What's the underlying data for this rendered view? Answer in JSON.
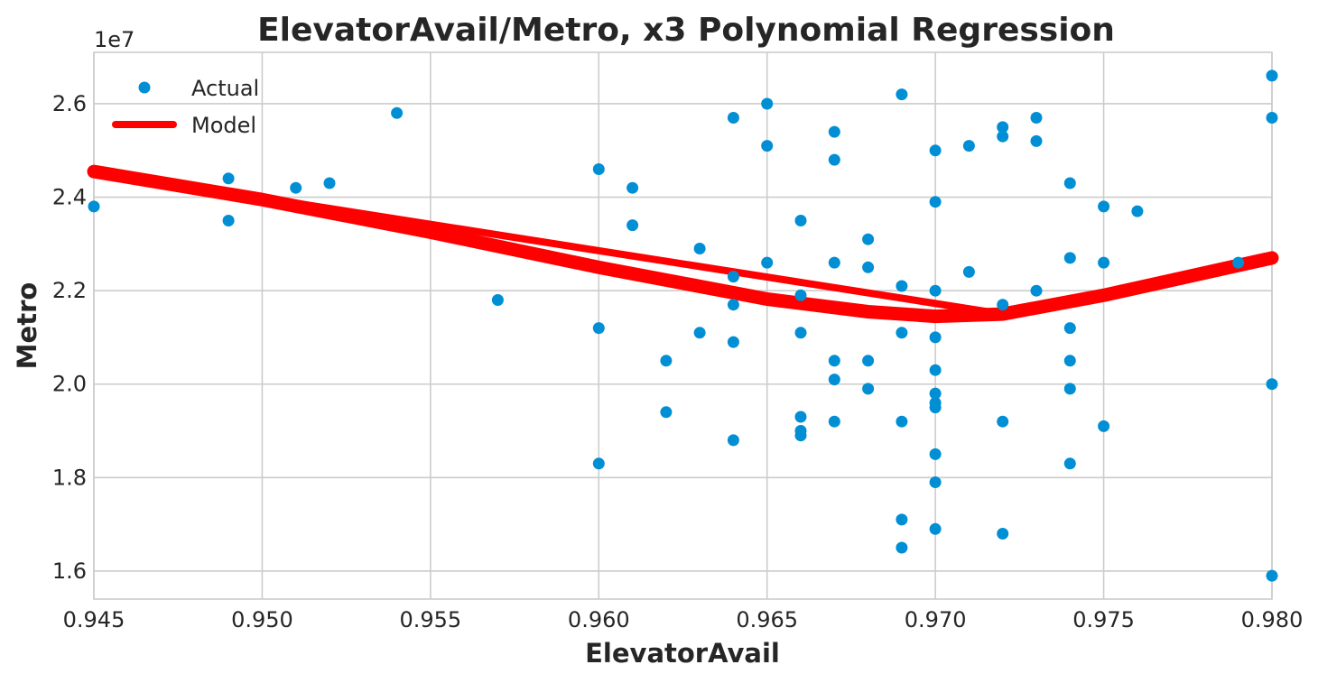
{
  "chart_data": {
    "type": "scatter",
    "title": "ElevatorAvail/Metro, x3 Polynomial Regression",
    "xlabel": "ElevatorAvail",
    "ylabel": "Metro",
    "y_offset_label": "1e7",
    "xlim": [
      0.945,
      0.98
    ],
    "ylim": [
      1.54,
      2.71
    ],
    "x_ticks": [
      0.945,
      0.95,
      0.955,
      0.96,
      0.965,
      0.97,
      0.975,
      0.98
    ],
    "x_tick_labels": [
      "0.945",
      "0.950",
      "0.955",
      "0.960",
      "0.965",
      "0.970",
      "0.975",
      "0.980"
    ],
    "y_ticks": [
      1.6,
      1.8,
      2.0,
      2.2,
      2.4,
      2.6
    ],
    "y_tick_labels": [
      "1.6",
      "1.8",
      "2.0",
      "2.2",
      "2.4",
      "2.6"
    ],
    "grid": true,
    "legend": {
      "position": "top-left",
      "entries": [
        "Actual",
        "Model"
      ]
    },
    "colors": {
      "actual": "#008fd5",
      "model": "#ff0000"
    },
    "series": [
      {
        "name": "Actual",
        "kind": "scatter",
        "points": [
          [
            0.945,
            2.38
          ],
          [
            0.949,
            2.44
          ],
          [
            0.949,
            2.35
          ],
          [
            0.951,
            2.42
          ],
          [
            0.952,
            2.43
          ],
          [
            0.954,
            2.58
          ],
          [
            0.957,
            2.18
          ],
          [
            0.96,
            2.46
          ],
          [
            0.96,
            2.12
          ],
          [
            0.96,
            1.83
          ],
          [
            0.961,
            2.42
          ],
          [
            0.961,
            2.34
          ],
          [
            0.962,
            2.05
          ],
          [
            0.962,
            1.94
          ],
          [
            0.963,
            2.29
          ],
          [
            0.963,
            2.11
          ],
          [
            0.964,
            2.57
          ],
          [
            0.964,
            2.23
          ],
          [
            0.964,
            2.17
          ],
          [
            0.964,
            2.09
          ],
          [
            0.964,
            1.88
          ],
          [
            0.965,
            2.6
          ],
          [
            0.965,
            2.51
          ],
          [
            0.965,
            2.26
          ],
          [
            0.966,
            2.35
          ],
          [
            0.966,
            2.19
          ],
          [
            0.966,
            2.11
          ],
          [
            0.966,
            1.93
          ],
          [
            0.966,
            1.9
          ],
          [
            0.966,
            1.89
          ],
          [
            0.967,
            2.54
          ],
          [
            0.967,
            2.48
          ],
          [
            0.967,
            2.26
          ],
          [
            0.967,
            2.05
          ],
          [
            0.967,
            2.01
          ],
          [
            0.967,
            1.92
          ],
          [
            0.968,
            2.31
          ],
          [
            0.968,
            2.25
          ],
          [
            0.968,
            2.05
          ],
          [
            0.968,
            1.99
          ],
          [
            0.969,
            2.62
          ],
          [
            0.969,
            2.21
          ],
          [
            0.969,
            2.11
          ],
          [
            0.969,
            1.92
          ],
          [
            0.969,
            1.71
          ],
          [
            0.969,
            1.65
          ],
          [
            0.97,
            2.5
          ],
          [
            0.97,
            2.39
          ],
          [
            0.97,
            2.2
          ],
          [
            0.97,
            2.1
          ],
          [
            0.97,
            2.03
          ],
          [
            0.97,
            1.98
          ],
          [
            0.97,
            1.96
          ],
          [
            0.97,
            1.95
          ],
          [
            0.97,
            1.85
          ],
          [
            0.97,
            1.79
          ],
          [
            0.97,
            1.69
          ],
          [
            0.971,
            2.51
          ],
          [
            0.971,
            2.24
          ],
          [
            0.972,
            2.55
          ],
          [
            0.972,
            2.53
          ],
          [
            0.972,
            2.17
          ],
          [
            0.972,
            1.92
          ],
          [
            0.972,
            1.68
          ],
          [
            0.973,
            2.57
          ],
          [
            0.973,
            2.52
          ],
          [
            0.973,
            2.2
          ],
          [
            0.974,
            2.43
          ],
          [
            0.974,
            2.27
          ],
          [
            0.974,
            2.12
          ],
          [
            0.974,
            2.05
          ],
          [
            0.974,
            1.99
          ],
          [
            0.974,
            1.83
          ],
          [
            0.975,
            2.38
          ],
          [
            0.975,
            2.26
          ],
          [
            0.975,
            1.91
          ],
          [
            0.976,
            2.37
          ],
          [
            0.979,
            2.26
          ],
          [
            0.98,
            2.66
          ],
          [
            0.98,
            2.57
          ],
          [
            0.98,
            2.0
          ],
          [
            0.98,
            1.59
          ]
        ]
      },
      {
        "name": "Model",
        "kind": "line",
        "description_points": [
          [
            0.945,
            2.455
          ],
          [
            0.95,
            2.395
          ],
          [
            0.955,
            2.325
          ],
          [
            0.96,
            2.25
          ],
          [
            0.965,
            2.182
          ],
          [
            0.968,
            2.155
          ],
          [
            0.97,
            2.145
          ],
          [
            0.972,
            2.15
          ],
          [
            0.975,
            2.19
          ],
          [
            0.98,
            2.27
          ]
        ],
        "chord": [
          [
            0.945,
            2.455
          ],
          [
            0.972,
            2.15
          ]
        ]
      }
    ]
  }
}
